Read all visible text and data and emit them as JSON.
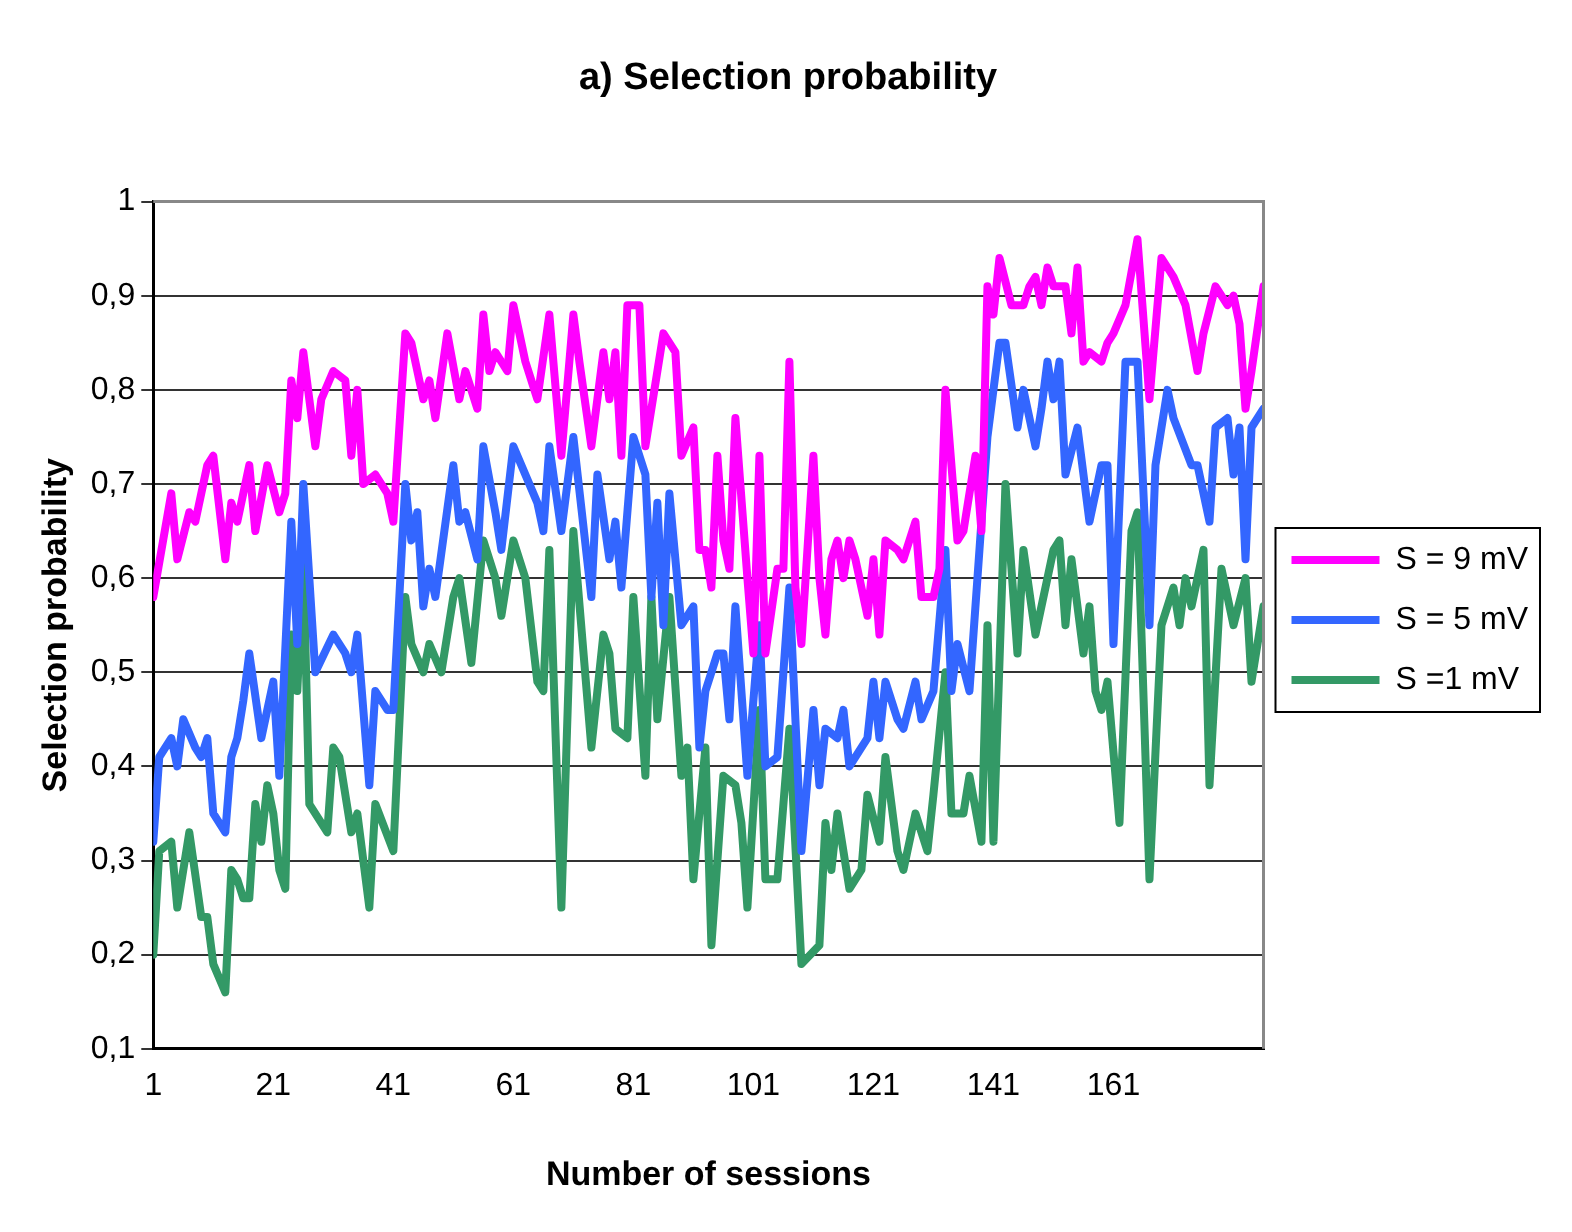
{
  "chart_data": {
    "type": "line",
    "title": "a) Selection probability",
    "xlabel": "Number of sessions",
    "ylabel": "Selection probability",
    "xlim": [
      1,
      186
    ],
    "xticks": [
      1,
      21,
      41,
      61,
      81,
      101,
      121,
      141,
      161
    ],
    "ylim": [
      0.1,
      1
    ],
    "yticks": [
      {
        "value": 0.1,
        "label": "0,1"
      },
      {
        "value": 0.2,
        "label": "0,2"
      },
      {
        "value": 0.3,
        "label": "0,3"
      },
      {
        "value": 0.4,
        "label": "0,4"
      },
      {
        "value": 0.5,
        "label": "0,5"
      },
      {
        "value": 0.6,
        "label": "0,6"
      },
      {
        "value": 0.7,
        "label": "0,7"
      },
      {
        "value": 0.8,
        "label": "0,8"
      },
      {
        "value": 0.9,
        "label": "0,9"
      },
      1
    ],
    "grid": "y",
    "legend": "right",
    "marker": "none",
    "line_style": "solid",
    "series": [
      {
        "name": "S = 9 mV",
        "color": "#ff00ff",
        "x": [
          1,
          4,
          5,
          7,
          8,
          10,
          11,
          13,
          14,
          15,
          17,
          18,
          20,
          22,
          23,
          24,
          25,
          26,
          28,
          29,
          31,
          33,
          34,
          35,
          36,
          38,
          40,
          41,
          43,
          44,
          46,
          47,
          48,
          50,
          52,
          53,
          55,
          56,
          57,
          58,
          60,
          61,
          63,
          65,
          67,
          69,
          71,
          72,
          74,
          76,
          77,
          78,
          79,
          80,
          82,
          83,
          85,
          86,
          88,
          89,
          91,
          92,
          93,
          94,
          95,
          96,
          97,
          98,
          100,
          101,
          102,
          103,
          105,
          106,
          107,
          108,
          109,
          111,
          112,
          113,
          114,
          115,
          116,
          117,
          118,
          120,
          121,
          122,
          123,
          125,
          126,
          128,
          129,
          131,
          132,
          133,
          135,
          136,
          138,
          139,
          140,
          141,
          142,
          144,
          146,
          147,
          148,
          149,
          150,
          151,
          153,
          154,
          155,
          156,
          157,
          159,
          160,
          161,
          163,
          165,
          167,
          169,
          171,
          173,
          175,
          176,
          178,
          180,
          181,
          182,
          183,
          184,
          186
        ],
        "values": [
          0.58,
          0.69,
          0.62,
          0.67,
          0.66,
          0.72,
          0.73,
          0.62,
          0.68,
          0.66,
          0.72,
          0.65,
          0.72,
          0.67,
          0.69,
          0.81,
          0.77,
          0.84,
          0.74,
          0.79,
          0.82,
          0.81,
          0.73,
          0.8,
          0.7,
          0.71,
          0.69,
          0.66,
          0.86,
          0.85,
          0.79,
          0.81,
          0.77,
          0.86,
          0.79,
          0.82,
          0.78,
          0.88,
          0.82,
          0.84,
          0.82,
          0.89,
          0.83,
          0.79,
          0.88,
          0.73,
          0.88,
          0.83,
          0.74,
          0.84,
          0.79,
          0.84,
          0.73,
          0.89,
          0.89,
          0.74,
          0.82,
          0.86,
          0.84,
          0.73,
          0.76,
          0.63,
          0.63,
          0.59,
          0.73,
          0.64,
          0.61,
          0.77,
          0.6,
          0.52,
          0.73,
          0.52,
          0.61,
          0.61,
          0.83,
          0.59,
          0.53,
          0.73,
          0.6,
          0.54,
          0.62,
          0.64,
          0.6,
          0.64,
          0.62,
          0.56,
          0.62,
          0.54,
          0.64,
          0.63,
          0.62,
          0.66,
          0.58,
          0.58,
          0.61,
          0.8,
          0.64,
          0.65,
          0.73,
          0.65,
          0.91,
          0.88,
          0.94,
          0.89,
          0.89,
          0.91,
          0.92,
          0.89,
          0.93,
          0.91,
          0.91,
          0.86,
          0.93,
          0.83,
          0.84,
          0.83,
          0.85,
          0.86,
          0.89,
          0.96,
          0.79,
          0.94,
          0.92,
          0.89,
          0.82,
          0.86,
          0.91,
          0.89,
          0.9,
          0.87,
          0.78,
          0.82,
          0.91
        ]
      },
      {
        "name": "S = 5 mV",
        "color": "#3366ff",
        "x": [
          1,
          2,
          4,
          5,
          6,
          8,
          9,
          10,
          11,
          13,
          14,
          15,
          16,
          17,
          19,
          21,
          22,
          24,
          25,
          26,
          28,
          31,
          33,
          34,
          35,
          37,
          38,
          40,
          41,
          43,
          44,
          45,
          46,
          47,
          48,
          51,
          52,
          53,
          55,
          56,
          58,
          59,
          61,
          63,
          65,
          66,
          67,
          69,
          71,
          74,
          75,
          77,
          78,
          79,
          81,
          83,
          84,
          85,
          86,
          87,
          89,
          91,
          92,
          93,
          95,
          96,
          97,
          98,
          100,
          102,
          103,
          105,
          107,
          109,
          111,
          112,
          113,
          115,
          116,
          117,
          120,
          121,
          122,
          123,
          125,
          126,
          128,
          129,
          131,
          133,
          134,
          135,
          137,
          140,
          142,
          143,
          145,
          146,
          148,
          149,
          150,
          151,
          152,
          153,
          155,
          156,
          157,
          159,
          160,
          161,
          163,
          165,
          167,
          168,
          170,
          171,
          174,
          175,
          177,
          178,
          180,
          181,
          182,
          183,
          184,
          186
        ],
        "values": [
          0.32,
          0.41,
          0.43,
          0.4,
          0.45,
          0.42,
          0.41,
          0.43,
          0.35,
          0.33,
          0.41,
          0.43,
          0.47,
          0.52,
          0.43,
          0.49,
          0.39,
          0.66,
          0.53,
          0.7,
          0.5,
          0.54,
          0.52,
          0.5,
          0.54,
          0.38,
          0.48,
          0.46,
          0.46,
          0.7,
          0.64,
          0.67,
          0.57,
          0.61,
          0.58,
          0.72,
          0.66,
          0.67,
          0.62,
          0.74,
          0.67,
          0.63,
          0.74,
          0.71,
          0.68,
          0.65,
          0.74,
          0.65,
          0.75,
          0.58,
          0.71,
          0.62,
          0.66,
          0.59,
          0.75,
          0.71,
          0.58,
          0.68,
          0.55,
          0.69,
          0.55,
          0.57,
          0.42,
          0.48,
          0.52,
          0.52,
          0.45,
          0.57,
          0.39,
          0.55,
          0.4,
          0.41,
          0.59,
          0.31,
          0.46,
          0.38,
          0.44,
          0.43,
          0.46,
          0.4,
          0.43,
          0.49,
          0.43,
          0.49,
          0.45,
          0.44,
          0.49,
          0.45,
          0.48,
          0.63,
          0.48,
          0.53,
          0.48,
          0.75,
          0.85,
          0.85,
          0.76,
          0.8,
          0.74,
          0.78,
          0.83,
          0.79,
          0.83,
          0.71,
          0.76,
          0.71,
          0.66,
          0.72,
          0.72,
          0.53,
          0.83,
          0.83,
          0.55,
          0.72,
          0.8,
          0.77,
          0.72,
          0.72,
          0.66,
          0.76,
          0.77,
          0.71,
          0.76,
          0.62,
          0.76,
          0.78
        ]
      },
      {
        "name": "S =1 mV",
        "color": "#339966",
        "x": [
          1,
          2,
          4,
          5,
          7,
          9,
          10,
          11,
          13,
          14,
          15,
          16,
          17,
          18,
          19,
          20,
          21,
          22,
          23,
          24,
          25,
          26,
          27,
          30,
          31,
          32,
          34,
          35,
          37,
          38,
          41,
          43,
          44,
          46,
          47,
          49,
          51,
          52,
          54,
          56,
          58,
          59,
          61,
          63,
          65,
          66,
          67,
          69,
          71,
          74,
          76,
          77,
          78,
          80,
          81,
          83,
          84,
          85,
          87,
          89,
          90,
          91,
          93,
          94,
          96,
          98,
          99,
          100,
          102,
          103,
          105,
          107,
          109,
          112,
          113,
          114,
          115,
          117,
          119,
          120,
          122,
          123,
          125,
          126,
          128,
          130,
          131,
          133,
          134,
          136,
          137,
          139,
          140,
          141,
          143,
          145,
          146,
          148,
          151,
          152,
          153,
          154,
          156,
          157,
          158,
          159,
          160,
          162,
          164,
          165,
          167,
          169,
          171,
          172,
          173,
          174,
          176,
          177,
          179,
          181,
          183,
          184,
          186
        ],
        "values": [
          0.2,
          0.31,
          0.32,
          0.25,
          0.33,
          0.24,
          0.24,
          0.19,
          0.16,
          0.29,
          0.28,
          0.26,
          0.26,
          0.36,
          0.32,
          0.38,
          0.35,
          0.29,
          0.27,
          0.54,
          0.48,
          0.62,
          0.36,
          0.33,
          0.42,
          0.41,
          0.33,
          0.35,
          0.25,
          0.36,
          0.31,
          0.58,
          0.53,
          0.5,
          0.53,
          0.5,
          0.58,
          0.6,
          0.51,
          0.64,
          0.6,
          0.56,
          0.64,
          0.6,
          0.49,
          0.48,
          0.63,
          0.25,
          0.65,
          0.42,
          0.54,
          0.52,
          0.44,
          0.43,
          0.58,
          0.39,
          0.58,
          0.45,
          0.58,
          0.39,
          0.42,
          0.28,
          0.42,
          0.21,
          0.39,
          0.38,
          0.34,
          0.25,
          0.46,
          0.28,
          0.28,
          0.44,
          0.19,
          0.21,
          0.34,
          0.29,
          0.35,
          0.27,
          0.29,
          0.37,
          0.32,
          0.41,
          0.31,
          0.29,
          0.35,
          0.31,
          0.37,
          0.5,
          0.35,
          0.35,
          0.39,
          0.32,
          0.55,
          0.32,
          0.7,
          0.52,
          0.63,
          0.54,
          0.63,
          0.64,
          0.55,
          0.62,
          0.52,
          0.57,
          0.48,
          0.46,
          0.49,
          0.34,
          0.65,
          0.67,
          0.28,
          0.55,
          0.59,
          0.55,
          0.6,
          0.57,
          0.63,
          0.38,
          0.61,
          0.55,
          0.6,
          0.49,
          0.57
        ]
      }
    ]
  }
}
